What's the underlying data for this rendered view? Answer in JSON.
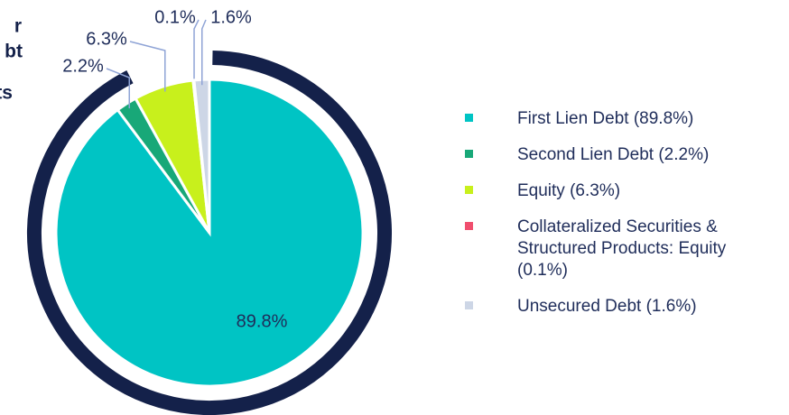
{
  "chart_data": {
    "type": "pie",
    "categories": [
      "First Lien Debt (89.8%)",
      "Second Lien Debt (2.2%)",
      "Equity (6.3%)",
      "Collateralized Securities & Structured Products: Equity (0.1%)",
      "Unsecured Debt (1.6%)"
    ],
    "values": [
      89.8,
      2.2,
      6.3,
      0.1,
      1.6
    ],
    "value_labels": [
      "89.8%",
      "2.2%",
      "6.3%",
      "0.1%",
      "1.6%"
    ],
    "colors": [
      "#00c4c4",
      "#18a878",
      "#c8f01c",
      "#f04e6e",
      "#cdd6e6"
    ],
    "annotations": [
      "r",
      "bt",
      "ts"
    ]
  }
}
